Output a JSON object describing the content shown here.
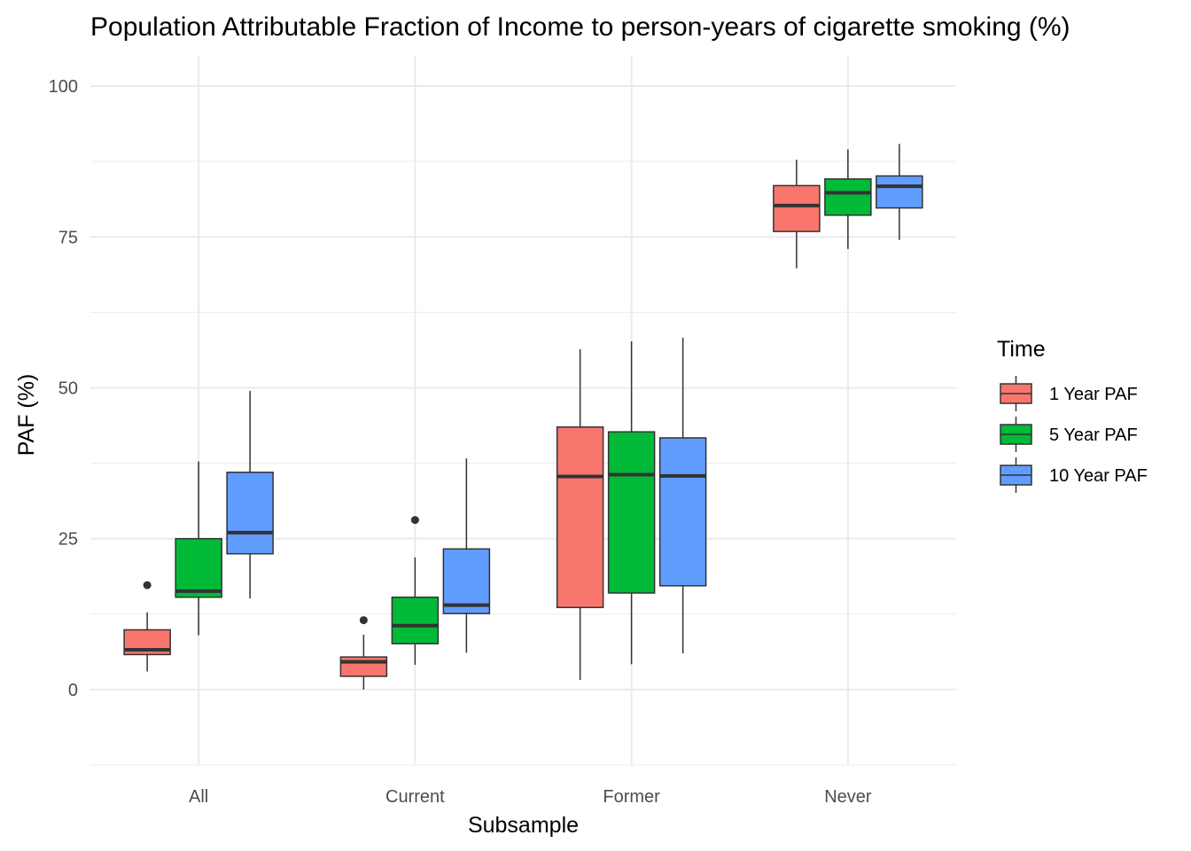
{
  "chart_data": {
    "type": "boxplot",
    "title": "Population Attributable Fraction of Income to person-years of cigarette smoking (%)",
    "xlabel": "Subsample",
    "ylabel": "PAF (%)",
    "categories": [
      "All",
      "Current",
      "Former",
      "Never"
    ],
    "ylim": [
      -12.5,
      105
    ],
    "yticks": [
      0,
      25,
      50,
      75,
      100
    ],
    "grid": true,
    "legend": {
      "title": "Time",
      "placement": "right"
    },
    "series": [
      {
        "name": "1 Year PAF",
        "color": "#F8766D",
        "boxes": [
          {
            "min": 3,
            "q1": 5.8,
            "median": 6.6,
            "q3": 9.9,
            "max": 12.8,
            "outliers": [
              17.3
            ]
          },
          {
            "min": 0,
            "q1": 2.2,
            "median": 4.6,
            "q3": 5.4,
            "max": 9.1,
            "outliers": [
              11.5
            ]
          },
          {
            "min": 1.6,
            "q1": 13.6,
            "median": 35.3,
            "q3": 43.5,
            "max": 56.4,
            "outliers": []
          },
          {
            "min": 69.8,
            "q1": 75.9,
            "median": 80.2,
            "q3": 83.5,
            "max": 87.8,
            "outliers": []
          }
        ]
      },
      {
        "name": "5 Year PAF",
        "color": "#00BA38",
        "boxes": [
          {
            "min": 9,
            "q1": 15.3,
            "median": 16.3,
            "q3": 25,
            "max": 37.8,
            "outliers": []
          },
          {
            "min": 4.1,
            "q1": 7.6,
            "median": 10.6,
            "q3": 15.3,
            "max": 21.9,
            "outliers": [
              28.1
            ]
          },
          {
            "min": 4.2,
            "q1": 16,
            "median": 35.6,
            "q3": 42.7,
            "max": 57.7,
            "outliers": []
          },
          {
            "min": 73,
            "q1": 78.6,
            "median": 82.3,
            "q3": 84.6,
            "max": 89.5,
            "outliers": []
          }
        ]
      },
      {
        "name": "10 Year PAF",
        "color": "#619CFF",
        "boxes": [
          {
            "min": 15.1,
            "q1": 22.5,
            "median": 26,
            "q3": 36,
            "max": 49.5,
            "outliers": []
          },
          {
            "min": 6.1,
            "q1": 12.6,
            "median": 14,
            "q3": 23.3,
            "max": 38.3,
            "outliers": []
          },
          {
            "min": 6,
            "q1": 17.2,
            "median": 35.4,
            "q3": 41.7,
            "max": 58.3,
            "outliers": []
          },
          {
            "min": 74.5,
            "q1": 79.8,
            "median": 83.4,
            "q3": 85.1,
            "max": 90.4,
            "outliers": []
          }
        ]
      }
    ]
  }
}
